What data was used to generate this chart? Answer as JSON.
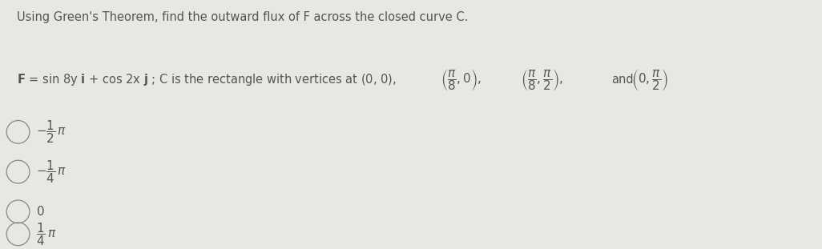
{
  "title": "Using Green's Theorem, find the outward flux of F across the closed curve C.",
  "background_color": "#e9e7e2",
  "title_fontsize": 10.5,
  "text_color": "#555550",
  "circle_color": "#888880",
  "options_display": [
    "$-\\dfrac{1}{2}\\,\\pi$",
    "$-\\dfrac{1}{4}\\,\\pi$",
    "$0$",
    "$\\dfrac{1}{4}\\,\\pi$"
  ]
}
